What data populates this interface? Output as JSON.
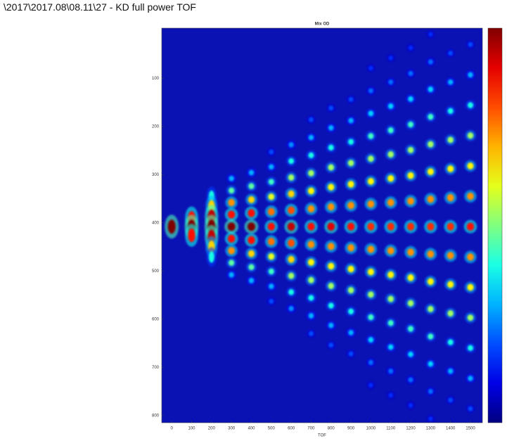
{
  "header": "\\2017\\2017.08\\08.11\\27 - KD full power TOF",
  "chart_data": {
    "type": "heatmap",
    "title": "Mix OD",
    "xlabel": "TOF",
    "xlim": [
      -50,
      1560
    ],
    "ylim": [
      -4,
      815
    ],
    "y_reversed": true,
    "xticks": [
      0,
      100,
      200,
      300,
      400,
      500,
      600,
      700,
      800,
      900,
      1000,
      1100,
      1200,
      1300,
      1400,
      1500
    ],
    "yticks": [
      100,
      200,
      300,
      400,
      500,
      600,
      700,
      800
    ],
    "clim": [
      0,
      3
    ],
    "colormap": "jet",
    "background": "#0b12b4",
    "colorbar": true,
    "columns": [
      {
        "x": 0,
        "y": [
          408
        ],
        "od": [
          3
        ]
      },
      {
        "x": 100,
        "y": [
          390,
          408,
          426
        ],
        "od": [
          2.6,
          3,
          2.6
        ]
      },
      {
        "x": 200,
        "y": [
          345,
          366,
          387,
          408,
          429,
          450,
          471
        ],
        "od": [
          1.2,
          2,
          2.8,
          3,
          2.8,
          2,
          1.2
        ]
      },
      {
        "x": 300,
        "y": [
          308,
          333,
          358,
          383,
          408,
          433,
          458,
          483,
          508
        ],
        "od": [
          0.9,
          1.4,
          2.2,
          2.6,
          3,
          2.6,
          2.2,
          1.4,
          0.9
        ]
      },
      {
        "x": 400,
        "y": [
          296,
          324,
          352,
          380,
          408,
          436,
          464,
          492,
          520
        ],
        "od": [
          0.9,
          1.4,
          2,
          2.6,
          3,
          2.6,
          2,
          1.4,
          0.9
        ]
      },
      {
        "x": 500,
        "y": [
          253,
          284,
          315,
          346,
          377,
          408,
          439,
          470,
          501,
          532,
          563
        ],
        "od": [
          0.6,
          0.9,
          1.3,
          1.8,
          2.3,
          2.6,
          2.3,
          1.8,
          1.3,
          0.9,
          0.6
        ]
      },
      {
        "x": 600,
        "y": [
          238,
          272,
          306,
          340,
          374,
          408,
          442,
          476,
          510,
          544,
          578
        ],
        "od": [
          0.8,
          1.2,
          1.6,
          2,
          2.4,
          2.8,
          2.4,
          2,
          1.6,
          1.2,
          0.8
        ]
      },
      {
        "x": 700,
        "y": [
          186,
          223,
          260,
          297,
          334,
          371,
          408,
          445,
          482,
          519,
          556,
          593,
          630
        ],
        "od": [
          0.6,
          0.9,
          1.2,
          1.6,
          1.9,
          2.2,
          2.6,
          2.2,
          1.9,
          1.6,
          1.2,
          0.9,
          0.6
        ]
      },
      {
        "x": 800,
        "y": [
          162,
          203,
          244,
          285,
          326,
          367,
          408,
          449,
          490,
          531,
          572,
          613,
          654
        ],
        "od": [
          0.6,
          0.9,
          1.2,
          1.6,
          1.9,
          2.2,
          2.7,
          2.2,
          1.9,
          1.6,
          1.2,
          0.9,
          0.6
        ]
      },
      {
        "x": 900,
        "y": [
          144,
          188,
          232,
          276,
          320,
          364,
          408,
          452,
          496,
          540,
          584,
          628,
          672
        ],
        "od": [
          0.6,
          0.9,
          1.2,
          1.6,
          1.9,
          2.2,
          2.6,
          2.2,
          1.9,
          1.6,
          1.2,
          0.9,
          0.6
        ]
      },
      {
        "x": 1000,
        "y": [
          79,
          126,
          173,
          220,
          267,
          314,
          361,
          408,
          455,
          502,
          549,
          596,
          643,
          690,
          737
        ],
        "od": [
          0.5,
          0.7,
          1,
          1.3,
          1.6,
          1.9,
          2.2,
          2.5,
          2.2,
          1.9,
          1.6,
          1.3,
          1,
          0.7,
          0.5
        ]
      },
      {
        "x": 1100,
        "y": [
          58,
          108,
          158,
          208,
          258,
          308,
          358,
          408,
          458,
          508,
          558,
          608,
          658,
          708,
          758
        ],
        "od": [
          0.5,
          0.7,
          1,
          1.3,
          1.6,
          1.9,
          2.2,
          2.5,
          2.2,
          1.9,
          1.6,
          1.3,
          1,
          0.7,
          0.5
        ]
      },
      {
        "x": 1200,
        "y": [
          37,
          90,
          143,
          196,
          249,
          302,
          355,
          408,
          461,
          514,
          567,
          620,
          673,
          726,
          779
        ],
        "od": [
          0.5,
          0.7,
          1,
          1.3,
          1.6,
          1.9,
          2.2,
          2.5,
          2.2,
          1.9,
          1.6,
          1.3,
          1,
          0.7,
          0.5
        ]
      },
      {
        "x": 1300,
        "y": [
          9,
          66,
          123,
          180,
          237,
          294,
          351,
          408,
          465,
          522,
          579,
          636,
          693,
          750,
          807
        ],
        "od": [
          0.5,
          0.7,
          1,
          1.3,
          1.6,
          1.9,
          2.2,
          2.5,
          2.2,
          1.9,
          1.6,
          1.3,
          1,
          0.7,
          0.5
        ]
      },
      {
        "x": 1400,
        "y": [
          48,
          108,
          168,
          228,
          288,
          348,
          408,
          468,
          528,
          588,
          648,
          708,
          768
        ],
        "od": [
          0.6,
          0.9,
          1.2,
          1.6,
          1.9,
          2.2,
          2.5,
          2.2,
          1.9,
          1.6,
          1.2,
          0.9,
          0.6
        ]
      },
      {
        "x": 1500,
        "y": [
          30,
          93,
          156,
          219,
          282,
          345,
          408,
          471,
          534,
          597,
          660,
          723,
          786
        ],
        "od": [
          0.6,
          0.9,
          1.2,
          1.6,
          1.9,
          2.2,
          2.6,
          2.2,
          1.9,
          1.6,
          1.2,
          0.9,
          0.6
        ]
      }
    ]
  }
}
